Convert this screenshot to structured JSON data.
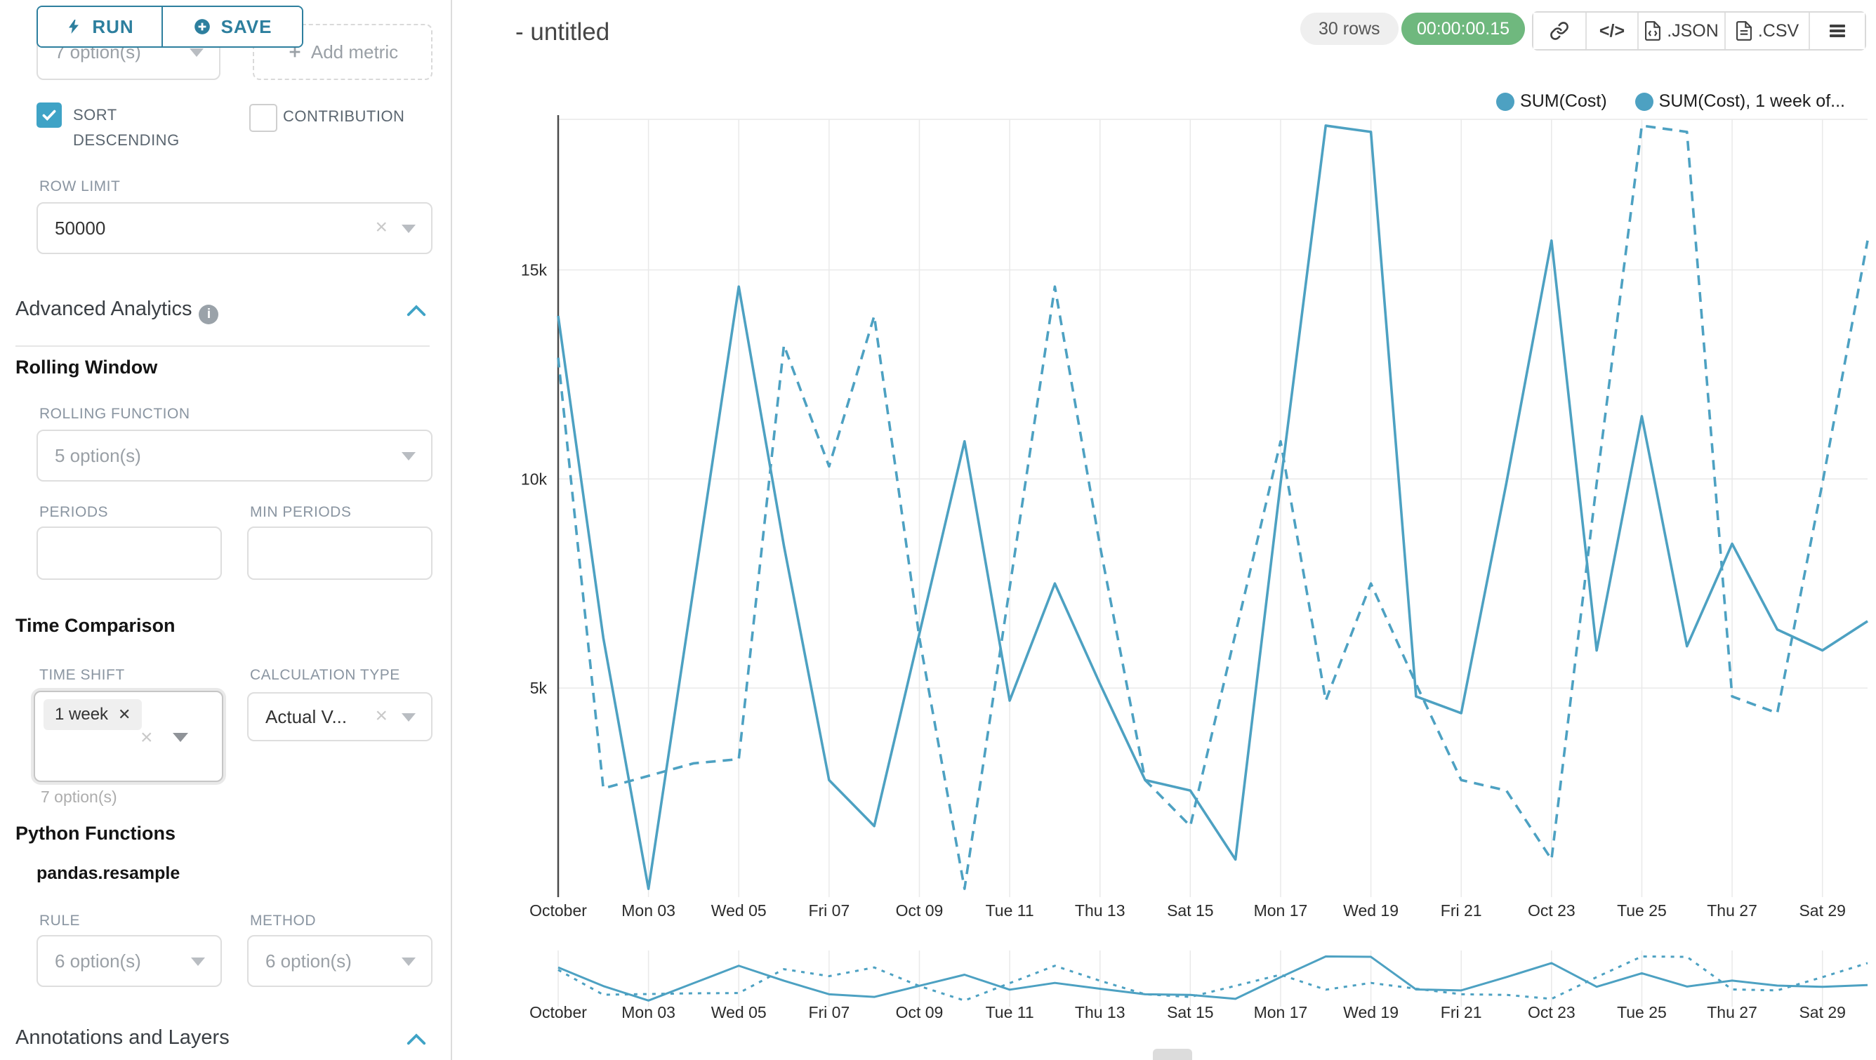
{
  "sidebar": {
    "run_label": "RUN",
    "save_label": "SAVE",
    "metric_select_value": "7 option(s)",
    "add_metric_label": "Add metric",
    "sort_descending_label": "SORT DESCENDING",
    "contribution_label": "CONTRIBUTION",
    "row_limit_label": "ROW LIMIT",
    "row_limit_value": "50000",
    "advanced_analytics_label": "Advanced Analytics",
    "rolling_window_label": "Rolling Window",
    "rolling_function_label": "ROLLING FUNCTION",
    "rolling_function_value": "5 option(s)",
    "periods_label": "PERIODS",
    "min_periods_label": "MIN PERIODS",
    "time_comparison_label": "Time Comparison",
    "time_shift_label": "TIME SHIFT",
    "time_shift_tag": "1 week",
    "time_shift_hint": "7 option(s)",
    "calculation_type_label": "CALCULATION TYPE",
    "calculation_type_value": "Actual V...",
    "python_functions_label": "Python Functions",
    "pandas_resample_label": "pandas.resample",
    "rule_label": "RULE",
    "rule_value": "6 option(s)",
    "method_label": "METHOD",
    "method_value": "6 option(s)",
    "annotations_label": "Annotations and Layers"
  },
  "header": {
    "title": "- untitled",
    "rows_badge": "30 rows",
    "timer": "00:00:00.15",
    "json_label": ".JSON",
    "csv_label": ".CSV"
  },
  "legend": {
    "items": [
      {
        "label": "SUM(Cost)"
      },
      {
        "label": "SUM(Cost), 1 week of..."
      }
    ]
  },
  "colors": {
    "accent_dark": "#2d7f9e",
    "accent": "#3fa3c6",
    "line": "#4da1c2",
    "timer_green": "#6fb87e"
  },
  "chart_data": {
    "type": "line",
    "title": "- untitled",
    "xlabel": "",
    "ylabel": "",
    "x_days": 30,
    "x_start": "October 01",
    "x_tick_labels": [
      "October",
      "Mon 03",
      "Wed 05",
      "Fri 07",
      "Oct 09",
      "Tue 11",
      "Thu 13",
      "Sat 15",
      "Mon 17",
      "Wed 19",
      "Fri 21",
      "Oct 23",
      "Tue 25",
      "Thu 27",
      "Sat 29"
    ],
    "y_ticks": [
      5000,
      10000,
      15000
    ],
    "y_tick_labels": [
      "5k",
      "10k",
      "15k"
    ],
    "ylim": [
      0,
      18600
    ],
    "grid": true,
    "legend_position": "top-right",
    "has_mini_preview": true,
    "series": [
      {
        "name": "SUM(Cost)",
        "style": "solid",
        "values": [
          13900,
          6200,
          200,
          7400,
          14600,
          8400,
          2800,
          1700,
          6300,
          10900,
          4700,
          7500,
          5100,
          2800,
          2550,
          900,
          9900,
          18450,
          18300,
          4800,
          4400,
          9900,
          15700,
          5900,
          11500,
          6000,
          8450,
          6400,
          5900,
          6600
        ]
      },
      {
        "name": "SUM(Cost), 1 week of...",
        "style": "dashed",
        "values": [
          12900,
          2600,
          2900,
          3200,
          3300,
          13200,
          10300,
          13900,
          6200,
          200,
          7400,
          14600,
          8400,
          2800,
          1700,
          6300,
          10900,
          4700,
          7500,
          5100,
          2800,
          2550,
          900,
          9900,
          18450,
          18300,
          4800,
          4400,
          9900,
          15700
        ]
      }
    ]
  }
}
